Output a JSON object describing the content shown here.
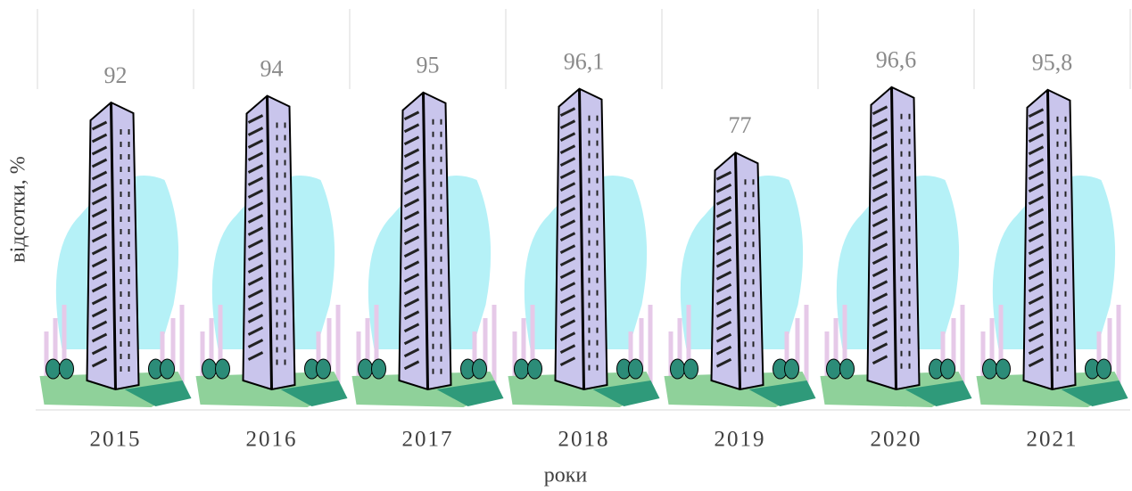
{
  "chart_data": {
    "type": "pictorial-bar",
    "y_label": "відсотки, %",
    "x_label": "роки",
    "categories": [
      "2015",
      "2016",
      "2017",
      "2018",
      "2019",
      "2020",
      "2021"
    ],
    "values": [
      92,
      94,
      95,
      96.1,
      77,
      96.6,
      95.8
    ],
    "value_labels": [
      "92",
      "94",
      "95",
      "96,1",
      "77",
      "96,6",
      "95,8"
    ],
    "color": "#c9c5ec"
  }
}
